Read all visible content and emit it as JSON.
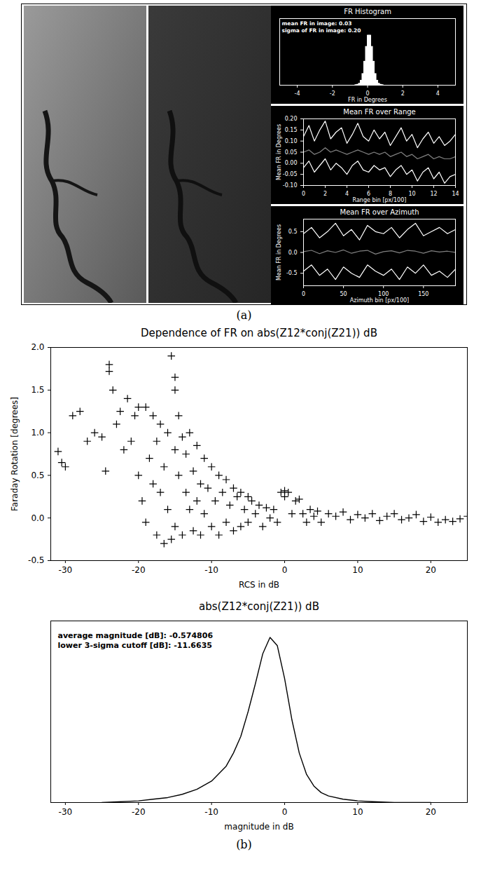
{
  "figure_labels": [
    "(a)",
    "(b)"
  ],
  "chart_data": [
    {
      "type": "histogram",
      "title": "FR Histogram",
      "x_label": "FR in Degrees",
      "annotations": [
        "mean FR in image: 0.03",
        "sigma of FR in image: 0.20"
      ],
      "bins": [
        -1.2,
        -1.1,
        -1.0,
        -0.9,
        -0.8,
        -0.7,
        -0.6,
        -0.5,
        -0.4,
        -0.3,
        -0.2,
        -0.1,
        0.0,
        0.1,
        0.2,
        0.3,
        0.4,
        0.5,
        0.6,
        0.7,
        0.8,
        0.9,
        1.0,
        1.1,
        1.2
      ],
      "counts": [
        0,
        0,
        0,
        0,
        0,
        0.3,
        1,
        3,
        9,
        22,
        46,
        75,
        97,
        97,
        75,
        46,
        22,
        9,
        3,
        1,
        0.3,
        0,
        0,
        0
      ],
      "color": "#ffffff",
      "xlim": [
        -5,
        5
      ],
      "xticks": [
        -4,
        -2,
        0,
        2,
        4
      ],
      "ylim": [
        0,
        130
      ],
      "tick_labels": "x",
      "grid": false
    },
    {
      "type": "line",
      "title": "Mean FR over Range",
      "x_label": "Range bin [px/100]",
      "y_label": "Mean FR in Degrees",
      "x": [
        0,
        0.5,
        1,
        1.5,
        2,
        2.5,
        3,
        3.5,
        4,
        4.5,
        5,
        5.5,
        6,
        6.5,
        7,
        7.5,
        8,
        8.5,
        9,
        9.5,
        10,
        10.5,
        11,
        11.5,
        12,
        12.5,
        13,
        13.5,
        14
      ],
      "series": [
        {
          "color": "#ffffff",
          "values": [
            0.12,
            0.17,
            0.1,
            0.15,
            0.19,
            0.11,
            0.14,
            0.16,
            0.09,
            0.13,
            0.18,
            0.12,
            0.1,
            0.15,
            0.11,
            0.14,
            0.08,
            0.12,
            0.16,
            0.1,
            0.13,
            0.07,
            0.11,
            0.14,
            0.09,
            0.12,
            0.08,
            0.1,
            0.13
          ]
        },
        {
          "color": "#808080",
          "values": [
            0.05,
            0.06,
            0.04,
            0.05,
            0.07,
            0.05,
            0.06,
            0.05,
            0.04,
            0.05,
            0.06,
            0.05,
            0.04,
            0.05,
            0.04,
            0.05,
            0.03,
            0.04,
            0.05,
            0.03,
            0.04,
            0.02,
            0.03,
            0.04,
            0.02,
            0.03,
            0.02,
            0.02,
            0.03
          ]
        },
        {
          "color": "#ffffff",
          "values": [
            -0.02,
            0.01,
            -0.04,
            -0.01,
            0.02,
            -0.03,
            0.0,
            -0.02,
            -0.05,
            -0.01,
            0.01,
            -0.03,
            -0.04,
            -0.01,
            -0.03,
            -0.02,
            -0.06,
            -0.03,
            -0.01,
            -0.05,
            -0.03,
            -0.08,
            -0.04,
            -0.02,
            -0.07,
            -0.04,
            -0.09,
            -0.06,
            -0.05
          ]
        }
      ],
      "xlim": [
        0,
        14
      ],
      "xticks": [
        0,
        2,
        4,
        6,
        8,
        10,
        12,
        14
      ],
      "ylim": [
        -0.1,
        0.2
      ],
      "yticks": [
        {
          "value": -0.1,
          "label": "-0.10"
        },
        -0.05,
        {
          "value": 0,
          "label": "0.00"
        },
        0.05,
        {
          "value": 0.1,
          "label": "0.10"
        },
        0.15,
        {
          "value": 0.2,
          "label": "0.20"
        }
      ],
      "grid": false
    },
    {
      "type": "line",
      "title": "Mean FR over Azimuth",
      "x_label": "Azimuth bin [px/100]",
      "y_label": "Mean FR in Degrees",
      "x": [
        0,
        10,
        20,
        30,
        40,
        50,
        60,
        70,
        80,
        90,
        100,
        110,
        120,
        130,
        140,
        150,
        160,
        170,
        180,
        190
      ],
      "series": [
        {
          "color": "#ffffff",
          "values": [
            0.45,
            0.6,
            0.35,
            0.5,
            0.7,
            0.4,
            0.55,
            0.3,
            0.65,
            0.5,
            0.45,
            0.6,
            0.35,
            0.55,
            0.7,
            0.4,
            0.5,
            0.6,
            0.45,
            0.55
          ]
        },
        {
          "color": "#808080",
          "values": [
            0.02,
            0.05,
            -0.03,
            0.04,
            0.0,
            0.06,
            -0.02,
            0.03,
            0.05,
            -0.04,
            0.02,
            0.04,
            -0.01,
            0.05,
            0.03,
            -0.02,
            0.04,
            0.01,
            0.03,
            0.0
          ]
        },
        {
          "color": "#ffffff",
          "values": [
            -0.45,
            -0.3,
            -0.55,
            -0.4,
            -0.65,
            -0.35,
            -0.5,
            -0.6,
            -0.3,
            -0.45,
            -0.55,
            -0.4,
            -0.65,
            -0.35,
            -0.5,
            -0.3,
            -0.55,
            -0.45,
            -0.6,
            -0.4
          ]
        }
      ],
      "xlim": [
        0,
        190
      ],
      "xticks": [
        0,
        50,
        100,
        150
      ],
      "ylim": [
        -0.8,
        0.8
      ],
      "yticks": [
        -0.5,
        {
          "value": 0,
          "label": "0.0"
        },
        0.5
      ],
      "grid": false
    },
    {
      "type": "scatter",
      "title": "Dependence of FR on abs(Z12*conj(Z21)) dB",
      "x_label": "RCS in dB",
      "y_label": "Faraday Rotation [degrees]",
      "marker": "plus",
      "color": "#000000",
      "x": [
        -31,
        -30.5,
        -30,
        -29,
        -28,
        -27,
        -26,
        -25,
        -24.5,
        -24,
        -24,
        -23.5,
        -23,
        -22.5,
        -22,
        -21.5,
        -21,
        -20.5,
        -20,
        -20,
        -19.5,
        -19,
        -19,
        -18.5,
        -18,
        -18,
        -17.5,
        -17.5,
        -17,
        -17,
        -16.5,
        -16.5,
        -16,
        -16,
        -15.5,
        -15.5,
        -15,
        -15,
        -15,
        -15,
        -14.5,
        -14.5,
        -14,
        -14,
        -13.5,
        -13.5,
        -13,
        -13,
        -12.5,
        -12.5,
        -12,
        -12,
        -11.5,
        -11.5,
        -11,
        -11,
        -10.5,
        -10,
        -10,
        -9.5,
        -9,
        -9,
        -8.5,
        -8,
        -8,
        -7.5,
        -7,
        -7,
        -6.5,
        -6,
        -6,
        -5.5,
        -5,
        -5,
        -4.5,
        -4,
        -3.5,
        -3,
        -2.5,
        -2,
        -1.5,
        -1,
        -0.5,
        0,
        0,
        0.5,
        1,
        1.5,
        2,
        2.5,
        3,
        3.5,
        4,
        4.5,
        5,
        6,
        7,
        8,
        9,
        10,
        11,
        12,
        13,
        14,
        15,
        16,
        17,
        18,
        19,
        20,
        21,
        22,
        23,
        24,
        25
      ],
      "values": [
        0.78,
        0.65,
        0.6,
        1.2,
        1.25,
        0.9,
        1.0,
        0.95,
        0.55,
        1.8,
        1.72,
        1.5,
        1.1,
        1.25,
        0.8,
        1.4,
        0.9,
        1.2,
        0.5,
        1.3,
        0.2,
        1.3,
        -0.05,
        0.7,
        1.2,
        0.4,
        -0.2,
        0.9,
        1.1,
        0.3,
        -0.3,
        0.6,
        1.0,
        0.1,
        -0.25,
        1.9,
        1.5,
        1.65,
        0.8,
        -0.1,
        0.5,
        1.2,
        0.95,
        -0.2,
        0.3,
        0.75,
        1.0,
        0.1,
        0.55,
        -0.15,
        0.85,
        0.2,
        0.4,
        -0.2,
        0.7,
        0.05,
        0.35,
        0.6,
        -0.1,
        0.2,
        0.5,
        -0.2,
        0.3,
        0.45,
        -0.05,
        0.15,
        0.35,
        -0.15,
        0.25,
        0.3,
        -0.1,
        0.1,
        0.25,
        -0.05,
        0.2,
        0.05,
        0.15,
        -0.1,
        0.12,
        0.0,
        0.1,
        -0.05,
        0.3,
        0.32,
        0.25,
        0.3,
        0.05,
        0.2,
        0.22,
        0.05,
        -0.05,
        0.1,
        0.02,
        0.08,
        -0.05,
        0.05,
        0.02,
        0.07,
        -0.02,
        0.04,
        0.0,
        0.05,
        -0.03,
        0.02,
        0.05,
        -0.02,
        0.0,
        0.04,
        -0.04,
        0.01,
        -0.05,
        -0.02,
        -0.04,
        -0.01,
        0.02
      ],
      "xlim": [
        -32,
        25
      ],
      "xticks": [
        -30,
        -20,
        -10,
        0,
        10,
        20
      ],
      "ylim": [
        -0.5,
        2.0
      ],
      "yticks": [
        -0.5,
        {
          "value": 0,
          "label": "0.0"
        },
        0.5,
        {
          "value": 1,
          "label": "1.0"
        },
        1.5,
        {
          "value": 2,
          "label": "2.0"
        }
      ],
      "grid": false
    },
    {
      "type": "line",
      "title": "abs(Z12*conj(Z21)) dB",
      "x_label": "magnitude in dB",
      "annotations": [
        "average magnitude [dB]: -0.574806",
        "lower 3-sigma cutoff [dB]: -11.6635"
      ],
      "x": [
        -25,
        -20,
        -18,
        -16,
        -14,
        -12,
        -10,
        -8,
        -7,
        -6,
        -5,
        -4,
        -3,
        -2,
        -1,
        0,
        1,
        2,
        3,
        4,
        5,
        6,
        8,
        10,
        12,
        15,
        20
      ],
      "values": [
        0,
        0.01,
        0.02,
        0.03,
        0.05,
        0.08,
        0.13,
        0.22,
        0.3,
        0.4,
        0.55,
        0.72,
        0.9,
        1.0,
        0.95,
        0.75,
        0.5,
        0.3,
        0.17,
        0.1,
        0.06,
        0.04,
        0.02,
        0.01,
        0.005,
        0,
        0
      ],
      "color": "#000000",
      "xlim": [
        -32,
        25
      ],
      "xticks": [
        -30,
        -20,
        -10,
        0,
        10,
        20
      ],
      "ylim": [
        0,
        1.1
      ],
      "tick_labels": "x",
      "grid": false
    }
  ]
}
